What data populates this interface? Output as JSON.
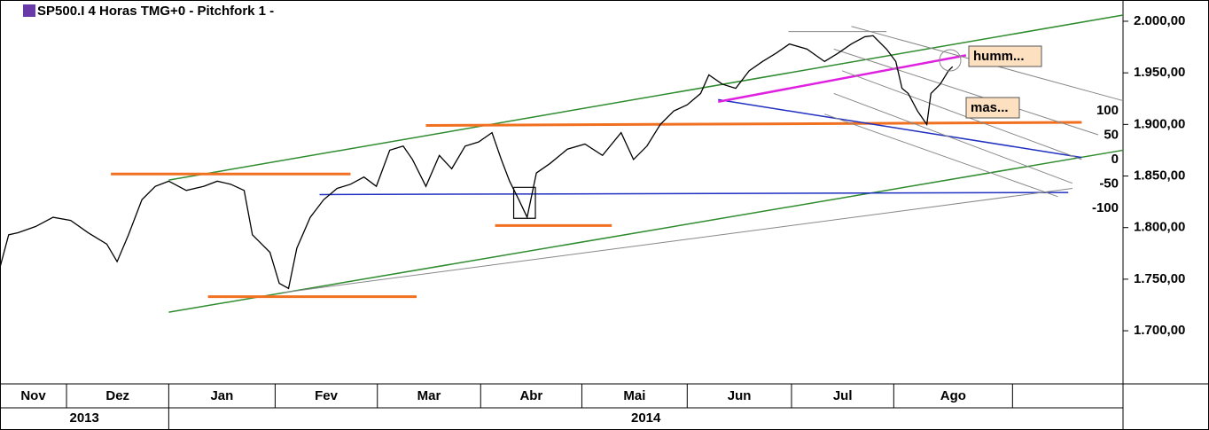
{
  "chart_data": {
    "type": "line",
    "title": "SP500.I 4 Horas TMG+0 -  Pitchfork 1 -",
    "xlim": [
      0.356,
      11.23
    ],
    "ylim": [
      1648.5,
      2020.6
    ],
    "yticks": [
      {
        "value": 1700,
        "label": "1.700,00"
      },
      {
        "value": 1750,
        "label": "1.750,00"
      },
      {
        "value": 1800,
        "label": "1.800,00"
      },
      {
        "value": 1850,
        "label": "1.850,00"
      },
      {
        "value": 1900,
        "label": "1.900,00"
      },
      {
        "value": 1950,
        "label": "1.950,00"
      },
      {
        "value": 2000,
        "label": "2.000,00"
      }
    ],
    "xticks": [
      {
        "value": 0,
        "label": "Nov"
      },
      {
        "value": 1,
        "label": "Dez"
      },
      {
        "value": 1.99,
        "label": "Jan"
      },
      {
        "value": 3.02,
        "label": "Fev"
      },
      {
        "value": 4.01,
        "label": "Mar"
      },
      {
        "value": 5.01,
        "label": "Abr"
      },
      {
        "value": 5.99,
        "label": "Mai"
      },
      {
        "value": 7.01,
        "label": "Jun"
      },
      {
        "value": 8.02,
        "label": "Jul"
      },
      {
        "value": 9.01,
        "label": "Ago"
      },
      {
        "value": 10.16,
        "label": null
      }
    ],
    "years": [
      {
        "value": 0,
        "label": "2013"
      },
      {
        "value": 1.99,
        "label": "2014"
      }
    ],
    "color": "#000000",
    "x": [
      0.36,
      0.44,
      0.53,
      0.7,
      0.87,
      1.04,
      1.21,
      1.39,
      1.49,
      1.6,
      1.73,
      1.86,
      1.99,
      2.16,
      2.33,
      2.46,
      2.59,
      2.72,
      2.8,
      2.89,
      2.97,
      3.06,
      3.15,
      3.23,
      3.36,
      3.49,
      3.62,
      3.75,
      3.88,
      4.0,
      4.13,
      4.26,
      4.35,
      4.48,
      4.61,
      4.73,
      4.86,
      4.99,
      5.12,
      5.21,
      5.29,
      5.38,
      5.46,
      5.55,
      5.68,
      5.85,
      6.02,
      6.19,
      6.37,
      6.49,
      6.62,
      6.75,
      6.88,
      7.01,
      7.14,
      7.22,
      7.35,
      7.48,
      7.61,
      7.74,
      7.87,
      8.0,
      8.17,
      8.34,
      8.47,
      8.6,
      8.73,
      8.81,
      8.94,
      9.03,
      9.09,
      9.15,
      9.24,
      9.33,
      9.37,
      9.46,
      9.54,
      9.58
    ],
    "values": [
      1763,
      1793,
      1795,
      1801,
      1810,
      1807,
      1795,
      1784,
      1767,
      1793,
      1827,
      1840,
      1845,
      1836,
      1840,
      1845,
      1842,
      1836,
      1793,
      1784,
      1776,
      1746,
      1741,
      1780,
      1810,
      1827,
      1838,
      1842,
      1849,
      1840,
      1875,
      1879,
      1866,
      1840,
      1870,
      1857,
      1879,
      1883,
      1892,
      1866,
      1845,
      1827,
      1810,
      1853,
      1862,
      1876,
      1881,
      1870,
      1892,
      1866,
      1879,
      1900,
      1913,
      1919,
      1930,
      1948,
      1939,
      1935,
      1952,
      1961,
      1969,
      1978,
      1973,
      1961,
      1969,
      1978,
      1985,
      1986,
      1973,
      1961,
      1935,
      1930,
      1913,
      1900,
      1930,
      1939,
      1952,
      1956
    ],
    "drawings": [
      {
        "color": "#2e8b2e",
        "width": 1.5,
        "points": [
          [
            1.99,
            1846
          ],
          [
            11.23,
            2006
          ]
        ]
      },
      {
        "color": "#2e8b2e",
        "width": 1.5,
        "points": [
          [
            1.99,
            1718
          ],
          [
            11.23,
            1875
          ]
        ]
      },
      {
        "color": "#f07020",
        "width": 3,
        "points": [
          [
            1.43,
            1852
          ],
          [
            3.75,
            1852
          ]
        ]
      },
      {
        "color": "#f07020",
        "width": 3,
        "points": [
          [
            2.37,
            1733
          ],
          [
            4.39,
            1733
          ]
        ]
      },
      {
        "color": "#f07020",
        "width": 3,
        "points": [
          [
            4.48,
            1899
          ],
          [
            10.83,
            1902
          ]
        ]
      },
      {
        "color": "#f07020",
        "width": 3,
        "points": [
          [
            5.15,
            1802
          ],
          [
            6.28,
            1802
          ]
        ]
      },
      {
        "color": "#2030c0",
        "width": 1.5,
        "points": [
          [
            3.45,
            1832
          ],
          [
            10.7,
            1834
          ]
        ]
      },
      {
        "color": "#2030c0",
        "width": 1.5,
        "points": [
          [
            7.31,
            1924
          ],
          [
            10.83,
            1868
          ]
        ]
      },
      {
        "color": "#e020e0",
        "width": 2.5,
        "points": [
          [
            7.31,
            1922
          ],
          [
            9.71,
            1967
          ]
        ]
      },
      {
        "color": "#888888",
        "width": 1,
        "points": [
          [
            3.1,
            1737
          ],
          [
            10.74,
            1838
          ]
        ]
      },
      {
        "color": "#888888",
        "width": 1,
        "points": [
          [
            8.6,
            1995
          ],
          [
            11.23,
            1923
          ]
        ]
      },
      {
        "color": "#888888",
        "width": 1,
        "points": [
          [
            8.43,
            1973
          ],
          [
            10.99,
            1890
          ]
        ]
      },
      {
        "color": "#888888",
        "width": 1,
        "points": [
          [
            8.51,
            1952
          ],
          [
            10.83,
            1866
          ]
        ]
      },
      {
        "color": "#888888",
        "width": 1,
        "points": [
          [
            8.43,
            1930
          ],
          [
            10.74,
            1843
          ]
        ]
      },
      {
        "color": "#888888",
        "width": 1,
        "points": [
          [
            8.34,
            1910
          ],
          [
            10.6,
            1830
          ]
        ]
      },
      {
        "color": "#888888",
        "width": 1,
        "points": [
          [
            7.99,
            1990
          ],
          [
            8.94,
            1990
          ]
        ]
      },
      {
        "color": "#000000",
        "width": 1.2,
        "points": [
          [
            5.33,
            1839
          ],
          [
            5.54,
            1839
          ],
          [
            5.54,
            1809
          ],
          [
            5.33,
            1809
          ],
          [
            5.33,
            1839
          ]
        ]
      }
    ],
    "annotations": [
      "humm...",
      "mas..."
    ],
    "pitchfork_levels": [
      "100",
      "50",
      "0",
      "-50",
      "-100"
    ]
  }
}
